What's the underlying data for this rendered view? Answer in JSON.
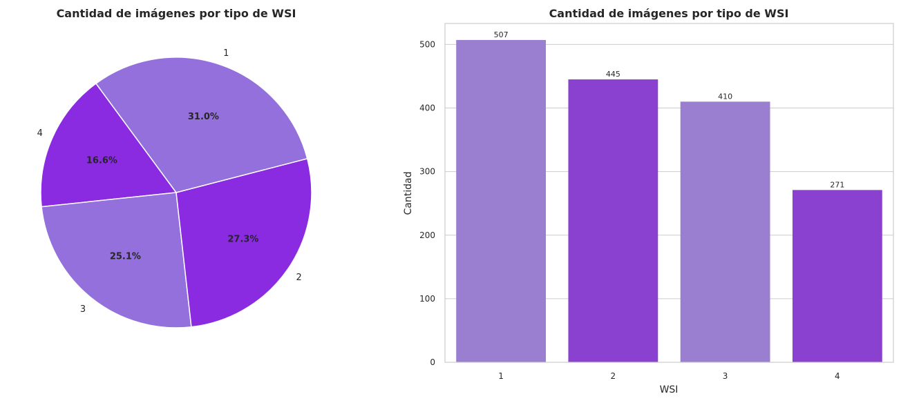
{
  "chart_data": [
    {
      "type": "pie",
      "title": "Cantidad de imágenes por tipo de WSI",
      "labels": [
        "4",
        "3",
        "2",
        "1"
      ],
      "values": [
        271,
        410,
        445,
        507
      ],
      "percent_labels": [
        "16.6%",
        "25.1%",
        "27.3%",
        "31.0%"
      ],
      "colors": [
        "#8a2be2",
        "#9370db",
        "#8a2be2",
        "#9370db"
      ],
      "slice_border": "#ffffff"
    },
    {
      "type": "bar",
      "title": "Cantidad de imágenes por tipo de WSI",
      "categories": [
        "1",
        "2",
        "3",
        "4"
      ],
      "values": [
        507,
        445,
        410,
        271
      ],
      "value_labels": [
        "507",
        "445",
        "410",
        "271"
      ],
      "xlabel": "WSI",
      "ylabel": "Cantidad",
      "ylim": [
        0,
        533
      ],
      "yticks": [
        0,
        100,
        200,
        300,
        400,
        500
      ],
      "grid": true,
      "colors": [
        "#9a7fd1",
        "#8a41cf",
        "#9a7fd1",
        "#8a41cf"
      ]
    }
  ]
}
